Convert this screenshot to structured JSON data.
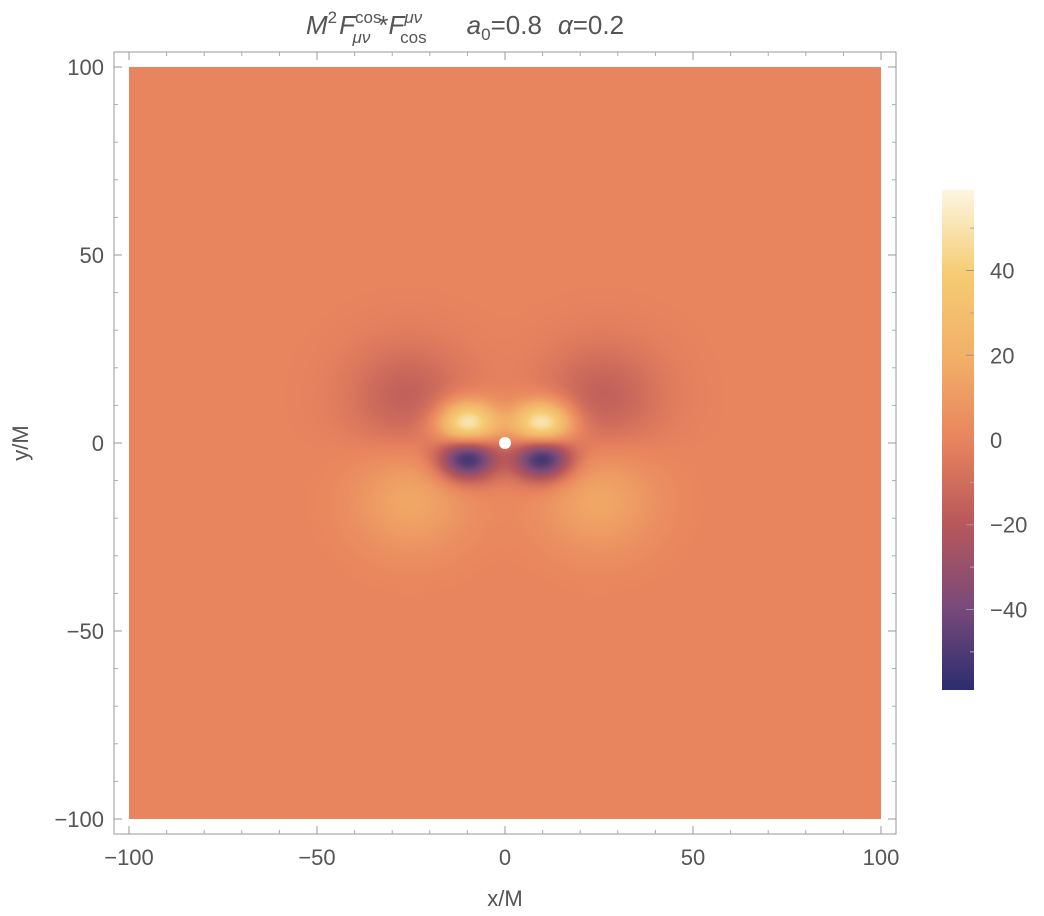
{
  "chart_data": {
    "type": "heatmap",
    "title": {
      "base_symbol": "M",
      "base_sup": "2",
      "f1_symbol": "F",
      "f1_sup": "cos",
      "f1_sub": "μν",
      "star": "*",
      "f2_symbol": "F",
      "f2_sup": "μν",
      "f2_sub": "cos",
      "param1_symbol": "a",
      "param1_sub": "0",
      "param1_rest": "=0.8",
      "param2_symbol": "α",
      "param2_rest": "=0.2"
    },
    "xlabel": "x/M",
    "ylabel": "y/M",
    "xlim": [
      -100,
      100
    ],
    "ylim": [
      -100,
      100
    ],
    "x_ticks": [
      -100,
      -50,
      0,
      50,
      100
    ],
    "y_ticks": [
      -100,
      -50,
      0,
      50,
      100
    ],
    "x_tick_labels": [
      "−100",
      "−50",
      "0",
      "50",
      "100"
    ],
    "y_tick_labels": [
      "−100",
      "−50",
      "0",
      "50",
      "100"
    ],
    "colorbar": {
      "range": [
        -59,
        59
      ],
      "ticks": [
        -40,
        -20,
        0,
        20,
        40
      ],
      "tick_labels": [
        "−40",
        "−20",
        "0",
        "20",
        "40"
      ],
      "colormap": [
        "#2b2d6e",
        "#7a4a7a",
        "#b8585a",
        "#e8845e",
        "#f2b068",
        "#f5cc74",
        "#fdf6e0"
      ],
      "position": "right"
    },
    "background_value": 0,
    "features": [
      {
        "name": "positive-lobe-left-inner",
        "x": -10,
        "y": 5,
        "peak": 59
      },
      {
        "name": "positive-lobe-right-inner",
        "x": 10,
        "y": 5,
        "peak": 59
      },
      {
        "name": "negative-lobe-left-inner",
        "x": -10,
        "y": -4,
        "peak": -59
      },
      {
        "name": "negative-lobe-right-inner",
        "x": 10,
        "y": -4,
        "peak": -59
      },
      {
        "name": "negative-lobe-left-outer",
        "x": -26,
        "y": 12,
        "peak": -16
      },
      {
        "name": "negative-lobe-right-outer",
        "x": 26,
        "y": 12,
        "peak": -16
      },
      {
        "name": "positive-lobe-left-outer",
        "x": -25,
        "y": -15,
        "peak": 16
      },
      {
        "name": "positive-lobe-right-outer",
        "x": 25,
        "y": -15,
        "peak": 16
      }
    ],
    "center_marker": {
      "x": 0,
      "y": 0,
      "color": "#ffffff"
    },
    "grid": false
  },
  "colors": {
    "background_fill": "#e8845e",
    "frame": "#999999",
    "text": "#555555"
  }
}
